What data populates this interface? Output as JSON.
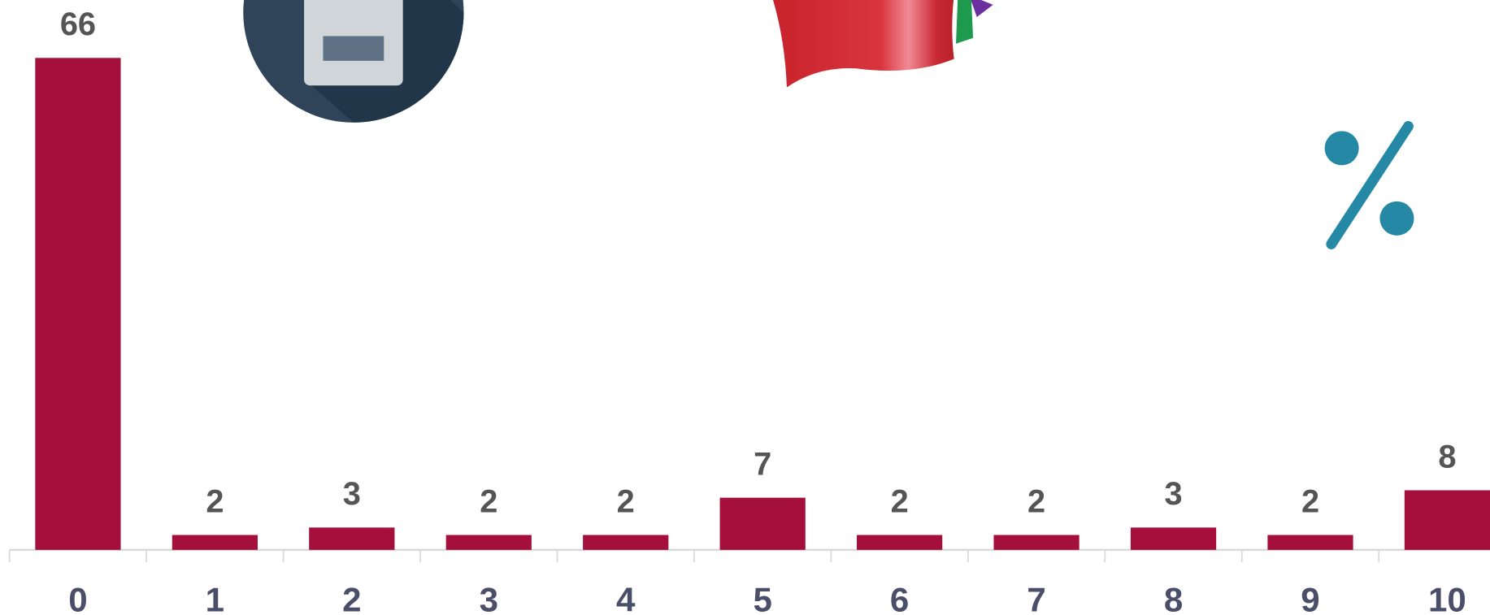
{
  "chart_data": {
    "type": "bar",
    "categories": [
      "0",
      "1",
      "2",
      "3",
      "4",
      "5",
      "6",
      "7",
      "8",
      "9",
      "10"
    ],
    "values": [
      66,
      2,
      3,
      2,
      2,
      7,
      2,
      2,
      3,
      2,
      8
    ],
    "color": "#a50f3c"
  }
}
